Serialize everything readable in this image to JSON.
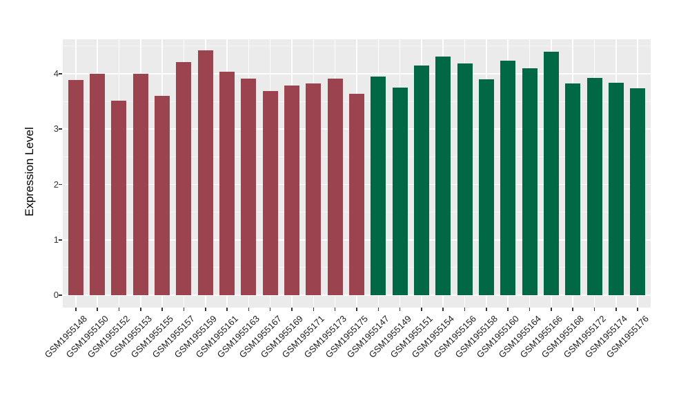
{
  "figure": {
    "background": "#FFFFFF"
  },
  "chart_data": {
    "type": "bar",
    "title": "",
    "xlabel": "",
    "ylabel": "Expression Level",
    "ylim": [
      0,
      4.62
    ],
    "yticks": [
      0,
      1,
      2,
      3,
      4
    ],
    "yminor": [
      0.5,
      1.5,
      2.5,
      3.5,
      4.5
    ],
    "grid": "on",
    "legend_position": "none",
    "panel_bg": "#EBEBEB",
    "grid_major_color": "#FFFFFF",
    "grid_minor_color": "#F4F4F4",
    "tick_mark_color": "#333333",
    "tick_label_color": "#333333",
    "group_colors": {
      "group1": "#9B4450",
      "group2": "#016846"
    },
    "bars": [
      {
        "label": "GSM1955148",
        "value": 3.89,
        "group": "group1"
      },
      {
        "label": "GSM1955150",
        "value": 4.0,
        "group": "group1"
      },
      {
        "label": "GSM1955152",
        "value": 3.51,
        "group": "group1"
      },
      {
        "label": "GSM1955153",
        "value": 4.0,
        "group": "group1"
      },
      {
        "label": "GSM1955155",
        "value": 3.6,
        "group": "group1"
      },
      {
        "label": "GSM1955157",
        "value": 4.21,
        "group": "group1"
      },
      {
        "label": "GSM1955159",
        "value": 4.42,
        "group": "group1"
      },
      {
        "label": "GSM1955161",
        "value": 4.04,
        "group": "group1"
      },
      {
        "label": "GSM1955163",
        "value": 3.91,
        "group": "group1"
      },
      {
        "label": "GSM1955167",
        "value": 3.69,
        "group": "group1"
      },
      {
        "label": "GSM1955169",
        "value": 3.79,
        "group": "group1"
      },
      {
        "label": "GSM1955171",
        "value": 3.82,
        "group": "group1"
      },
      {
        "label": "GSM1955173",
        "value": 3.91,
        "group": "group1"
      },
      {
        "label": "GSM1955175",
        "value": 3.64,
        "group": "group1"
      },
      {
        "label": "GSM1955147",
        "value": 3.95,
        "group": "group2"
      },
      {
        "label": "GSM1955149",
        "value": 3.75,
        "group": "group2"
      },
      {
        "label": "GSM1955151",
        "value": 4.15,
        "group": "group2"
      },
      {
        "label": "GSM1955154",
        "value": 4.31,
        "group": "group2"
      },
      {
        "label": "GSM1955156",
        "value": 4.19,
        "group": "group2"
      },
      {
        "label": "GSM1955158",
        "value": 3.9,
        "group": "group2"
      },
      {
        "label": "GSM1955160",
        "value": 4.24,
        "group": "group2"
      },
      {
        "label": "GSM1955164",
        "value": 4.1,
        "group": "group2"
      },
      {
        "label": "GSM1955166",
        "value": 4.4,
        "group": "group2"
      },
      {
        "label": "GSM1955168",
        "value": 3.82,
        "group": "group2"
      },
      {
        "label": "GSM1955172",
        "value": 3.93,
        "group": "group2"
      },
      {
        "label": "GSM1955174",
        "value": 3.84,
        "group": "group2"
      },
      {
        "label": "GSM1955176",
        "value": 3.74,
        "group": "group2"
      }
    ]
  }
}
